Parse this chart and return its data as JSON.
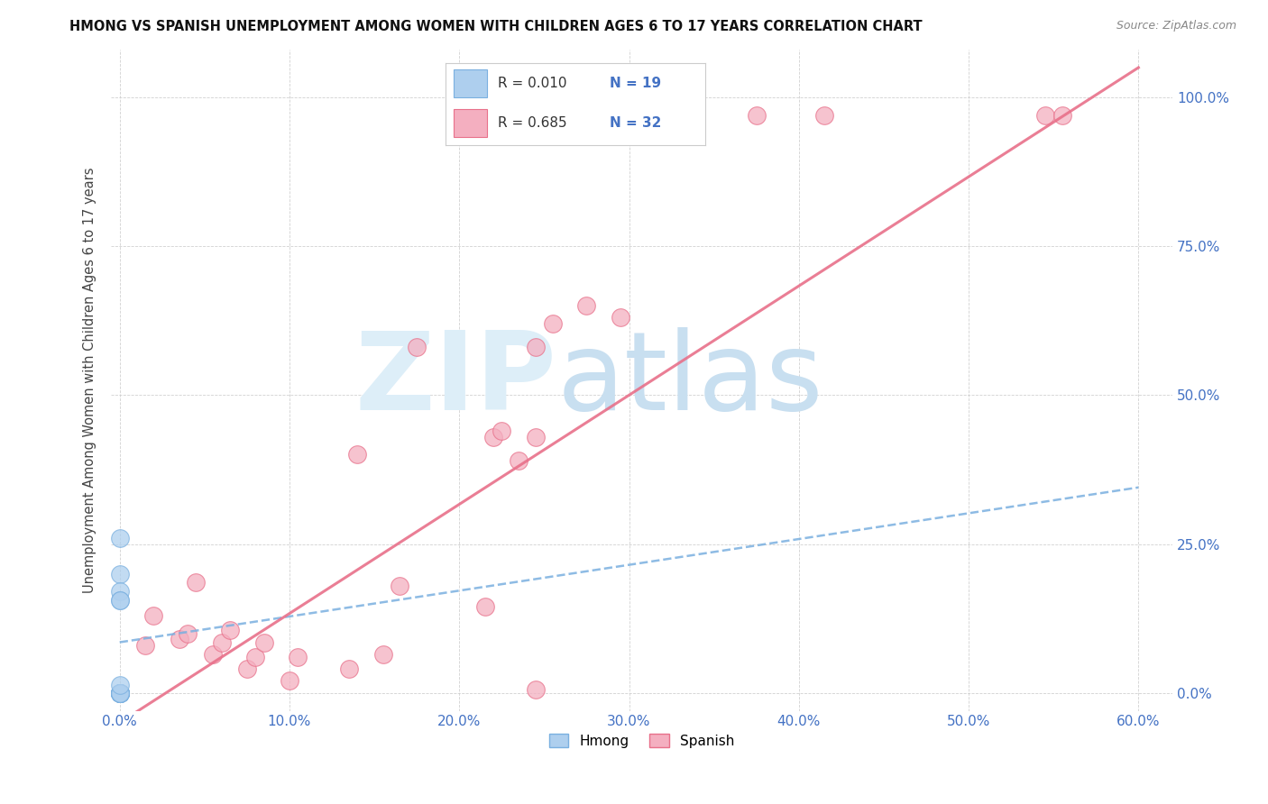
{
  "title": "HMONG VS SPANISH UNEMPLOYMENT AMONG WOMEN WITH CHILDREN AGES 6 TO 17 YEARS CORRELATION CHART",
  "source": "Source: ZipAtlas.com",
  "ylabel": "Unemployment Among Women with Children Ages 6 to 17 years",
  "xlabel_ticks": [
    0.0,
    0.1,
    0.2,
    0.3,
    0.4,
    0.5,
    0.6
  ],
  "xlabel_labels": [
    "0.0%",
    "10.0%",
    "20.0%",
    "30.0%",
    "40.0%",
    "50.0%",
    "60.0%"
  ],
  "ylabel_ticks": [
    0.0,
    0.25,
    0.5,
    0.75,
    1.0
  ],
  "ylabel_labels": [
    "0.0%",
    "25.0%",
    "50.0%",
    "75.0%",
    "100.0%"
  ],
  "hmong_R": "0.010",
  "hmong_N": "19",
  "spanish_R": "0.685",
  "spanish_N": "32",
  "hmong_color": "#7ab0e0",
  "hmong_fill": "#aecfee",
  "spanish_color": "#e8708a",
  "spanish_fill": "#f4afc0",
  "trendline_hmong_color": "#7ab0e0",
  "trendline_spanish_color": "#e8708a",
  "watermark_zip": "ZIP",
  "watermark_atlas": "atlas",
  "watermark_color_zip": "#ddeef8",
  "watermark_color_atlas": "#c8dff0",
  "xlim": [
    -0.005,
    0.62
  ],
  "ylim": [
    -0.03,
    1.08
  ],
  "hmong_x": [
    0.0,
    0.0,
    0.0,
    0.0,
    0.0,
    0.0,
    0.0,
    0.0,
    0.0,
    0.0,
    0.0,
    0.0,
    0.0,
    0.0,
    0.0,
    0.0,
    0.0,
    0.0,
    0.0
  ],
  "hmong_y": [
    0.0,
    0.0,
    0.0,
    0.0,
    0.0,
    0.0,
    0.0,
    0.0,
    0.0,
    0.0,
    0.0,
    0.0,
    0.0,
    0.013,
    0.2,
    0.17,
    0.155,
    0.26,
    0.155
  ],
  "hmong_trend_x0": 0.0,
  "hmong_trend_y0": 0.085,
  "hmong_trend_x1": 0.6,
  "hmong_trend_y1": 0.345,
  "spanish_x": [
    0.015,
    0.02,
    0.035,
    0.04,
    0.045,
    0.055,
    0.06,
    0.065,
    0.075,
    0.08,
    0.085,
    0.1,
    0.105,
    0.135,
    0.14,
    0.155,
    0.165,
    0.175,
    0.215,
    0.22,
    0.225,
    0.235,
    0.245,
    0.245,
    0.245,
    0.255,
    0.275,
    0.295,
    0.375,
    0.415,
    0.545,
    0.555
  ],
  "spanish_y": [
    0.08,
    0.13,
    0.09,
    0.1,
    0.185,
    0.065,
    0.085,
    0.105,
    0.04,
    0.06,
    0.085,
    0.02,
    0.06,
    0.04,
    0.4,
    0.065,
    0.18,
    0.58,
    0.145,
    0.43,
    0.44,
    0.39,
    0.43,
    0.58,
    0.005,
    0.62,
    0.65,
    0.63,
    0.97,
    0.97,
    0.97,
    0.97
  ],
  "spanish_trend_x0": 0.0,
  "spanish_trend_y0": -0.05,
  "spanish_trend_x1": 0.6,
  "spanish_trend_y1": 1.05
}
